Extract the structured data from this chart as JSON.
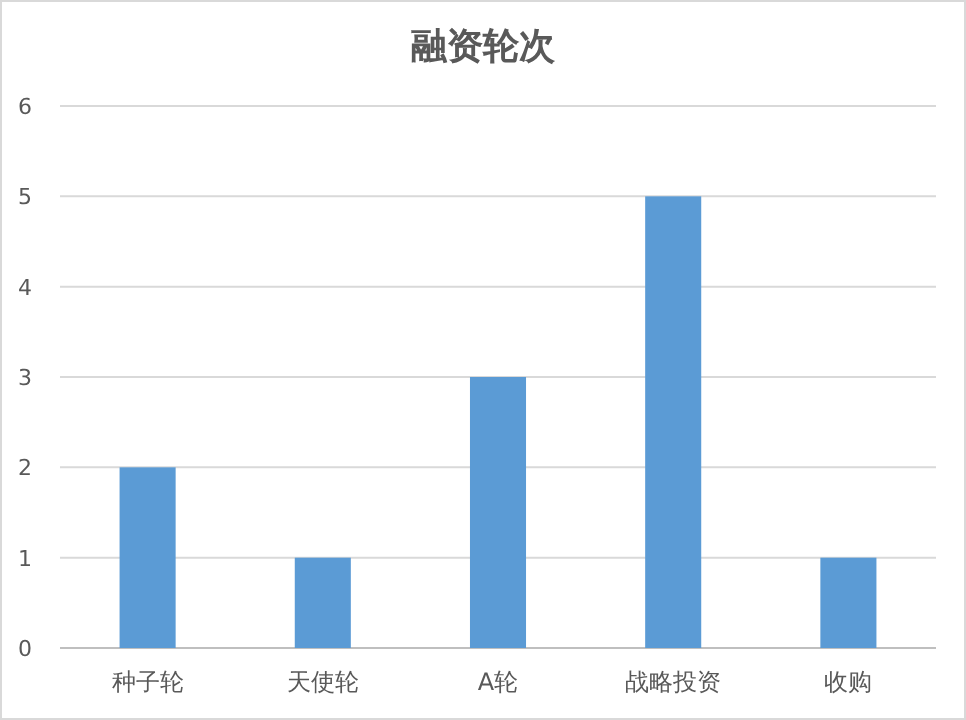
{
  "chart_data": {
    "type": "bar",
    "title": "融资轮次",
    "categories": [
      "种子轮",
      "天使轮",
      "A轮",
      "战略投资",
      "收购"
    ],
    "values": [
      2,
      1,
      3,
      5,
      1
    ],
    "color": "#5b9bd5",
    "ylim": [
      0,
      6
    ],
    "yticks": [
      0,
      1,
      2,
      3,
      4,
      5,
      6
    ],
    "grid": "y"
  }
}
